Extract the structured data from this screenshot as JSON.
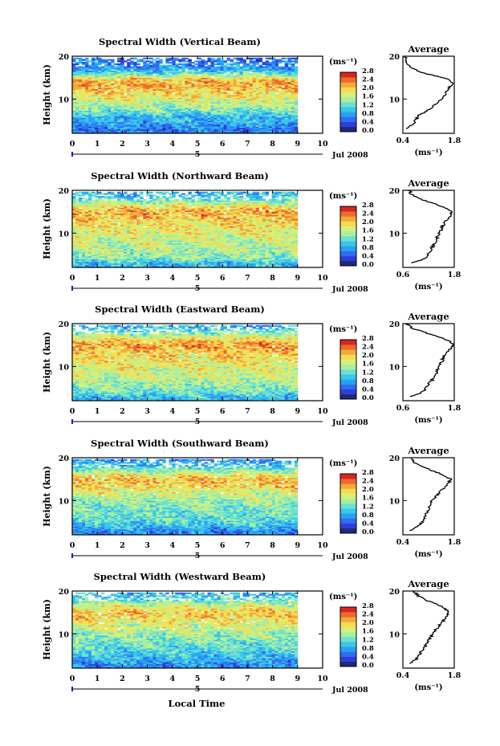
{
  "chart_data": {
    "type": "heatmap",
    "figure_xlabel": "Local Time",
    "date_label": "Jul 2008",
    "day_marker": "5",
    "x_ticks": [
      "0",
      "1",
      "2",
      "3",
      "4",
      "5",
      "6",
      "7",
      "8",
      "9",
      "10"
    ],
    "xlim": [
      0,
      10
    ],
    "data_end_hour": 9,
    "ylabel": "Height (km)",
    "y_ticks": [
      "10",
      "20"
    ],
    "ylim": [
      2,
      20
    ],
    "colorbar": {
      "unit": "(ms⁻¹)",
      "ticks": [
        "0.0",
        "0.4",
        "0.8",
        "1.2",
        "1.6",
        "2.0",
        "2.4",
        "2.8"
      ],
      "range": [
        0,
        2.8
      ],
      "colors": [
        "#1e2a78",
        "#2d3fd8",
        "#2f6ef0",
        "#2aa0f5",
        "#37c8ea",
        "#6fe0d0",
        "#a8f0a0",
        "#d8f07a",
        "#f6dc50",
        "#f5a83a",
        "#ec6a2c",
        "#d8261e"
      ]
    },
    "panels": [
      {
        "title": "Spectral Width (Vertical Beam)",
        "profile_title": "Average",
        "profile_xlabel": "(ms⁻¹)",
        "profile_xticks": [
          "0.4",
          "1.8"
        ],
        "profile_xlim": [
          0.4,
          1.8
        ],
        "profile_yticks": [
          "10",
          "20"
        ],
        "profile": {
          "height_km": [
            3,
            4,
            5,
            6,
            7,
            8,
            9,
            10,
            11,
            12,
            13,
            14,
            15,
            16,
            17,
            18,
            19,
            20
          ],
          "value": [
            0.5,
            0.65,
            0.75,
            0.8,
            1.0,
            1.2,
            1.3,
            1.45,
            1.55,
            1.6,
            1.7,
            1.75,
            1.5,
            1.0,
            0.7,
            0.55,
            0.5,
            0.45
          ]
        }
      },
      {
        "title": "Spectral Width (Northward Beam)",
        "profile_title": "Average",
        "profile_xlabel": "(ms⁻¹)",
        "profile_xticks": [
          "0.6",
          "1.8"
        ],
        "profile_xlim": [
          0.6,
          1.8
        ],
        "profile_yticks": [
          "10",
          "20"
        ],
        "profile": {
          "height_km": [
            3,
            4,
            5,
            6,
            7,
            8,
            9,
            10,
            11,
            12,
            13,
            14,
            15,
            16,
            17,
            18,
            19,
            20
          ],
          "value": [
            0.8,
            1.1,
            1.2,
            1.25,
            1.3,
            1.35,
            1.4,
            1.45,
            1.5,
            1.55,
            1.6,
            1.7,
            1.75,
            1.6,
            1.3,
            1.0,
            0.8,
            0.75
          ]
        }
      },
      {
        "title": "Spectral Width (Eastward Beam)",
        "profile_title": "Average",
        "profile_xlabel": "(ms⁻¹)",
        "profile_xticks": [
          "0.6",
          "1.8"
        ],
        "profile_xlim": [
          0.6,
          1.8
        ],
        "profile_yticks": [
          "10",
          "20"
        ],
        "profile": {
          "height_km": [
            3,
            4,
            5,
            6,
            7,
            8,
            9,
            10,
            11,
            12,
            13,
            14,
            15,
            16,
            17,
            18,
            19,
            20
          ],
          "value": [
            0.8,
            1.05,
            1.15,
            1.2,
            1.3,
            1.35,
            1.4,
            1.45,
            1.5,
            1.55,
            1.6,
            1.7,
            1.8,
            1.7,
            1.4,
            1.1,
            0.8,
            0.7
          ]
        }
      },
      {
        "title": "Spectral Width (Southward Beam)",
        "profile_title": "Average",
        "profile_xlabel": "(ms⁻¹)",
        "profile_xticks": [
          "0.4",
          "1.8"
        ],
        "profile_xlim": [
          0.4,
          1.8
        ],
        "profile_yticks": [
          "10",
          "20"
        ],
        "profile": {
          "height_km": [
            3,
            4,
            5,
            6,
            7,
            8,
            9,
            10,
            11,
            12,
            13,
            14,
            15,
            16,
            17,
            18,
            19,
            20
          ],
          "value": [
            0.6,
            0.8,
            0.95,
            1.0,
            1.05,
            1.1,
            1.15,
            1.2,
            1.3,
            1.4,
            1.55,
            1.65,
            1.7,
            1.5,
            1.2,
            0.9,
            0.7,
            0.6
          ]
        }
      },
      {
        "title": "Spectral Width (Westward Beam)",
        "profile_title": "Average",
        "profile_xlabel": "(ms⁻¹)",
        "profile_xticks": [
          "0.4",
          "1.8"
        ],
        "profile_xlim": [
          0.4,
          1.8
        ],
        "profile_yticks": [
          "10",
          "20"
        ],
        "profile": {
          "height_km": [
            3,
            4,
            5,
            6,
            7,
            8,
            9,
            10,
            11,
            12,
            13,
            14,
            15,
            16,
            17,
            18,
            19,
            20
          ],
          "value": [
            0.6,
            0.75,
            0.85,
            0.9,
            1.0,
            1.05,
            1.15,
            1.2,
            1.3,
            1.4,
            1.5,
            1.6,
            1.65,
            1.55,
            1.3,
            1.0,
            0.8,
            0.7
          ]
        }
      }
    ]
  }
}
